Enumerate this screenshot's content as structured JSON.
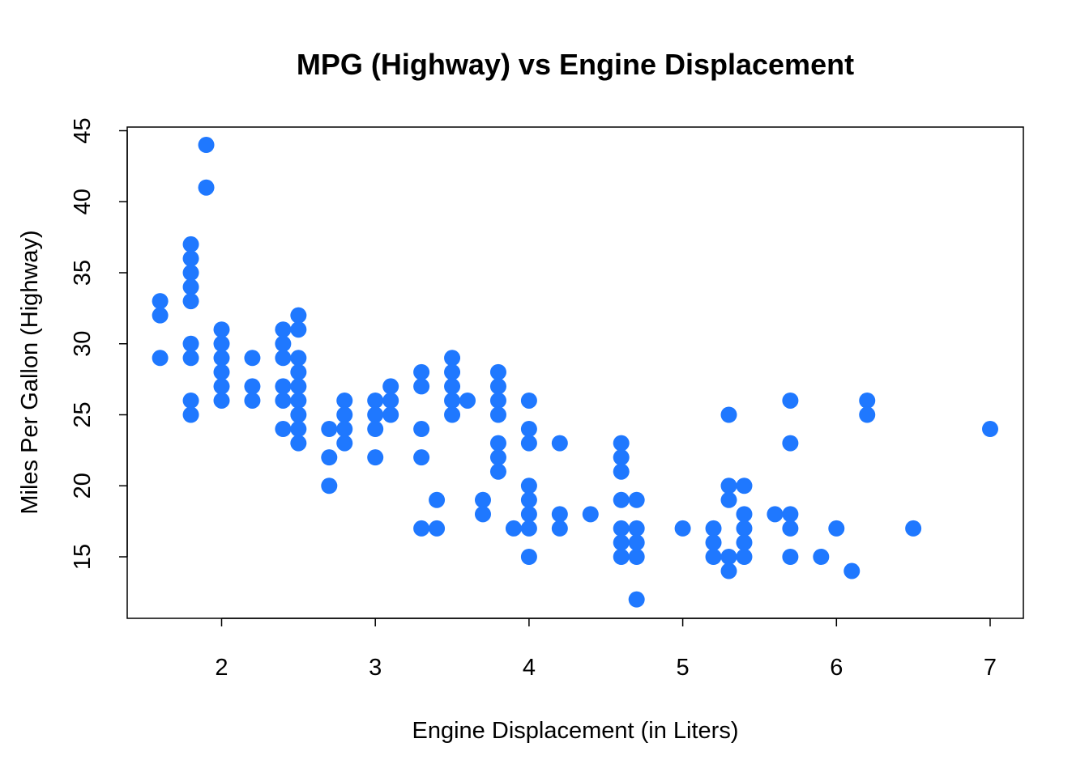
{
  "chart_data": {
    "type": "scatter",
    "title": "MPG (Highway) vs Engine Displacement",
    "xlabel": "Engine Displacement (in Liters)",
    "ylabel": "Miles Per Gallon (Highway)",
    "xlim": [
      1.6,
      7.0
    ],
    "ylim": [
      12,
      44
    ],
    "x_ticks": [
      2,
      3,
      4,
      5,
      6,
      7
    ],
    "y_ticks": [
      15,
      20,
      25,
      30,
      35,
      40,
      45
    ],
    "grid": false,
    "legend": "none",
    "point_color": "#1f78ff",
    "points": [
      {
        "x": 1.6,
        "y": 33
      },
      {
        "x": 1.6,
        "y": 32
      },
      {
        "x": 1.6,
        "y": 29
      },
      {
        "x": 1.8,
        "y": 37
      },
      {
        "x": 1.8,
        "y": 36
      },
      {
        "x": 1.8,
        "y": 35
      },
      {
        "x": 1.8,
        "y": 34
      },
      {
        "x": 1.8,
        "y": 33
      },
      {
        "x": 1.8,
        "y": 30
      },
      {
        "x": 1.8,
        "y": 29
      },
      {
        "x": 1.8,
        "y": 26
      },
      {
        "x": 1.8,
        "y": 25
      },
      {
        "x": 1.9,
        "y": 44
      },
      {
        "x": 1.9,
        "y": 41
      },
      {
        "x": 2.0,
        "y": 31
      },
      {
        "x": 2.0,
        "y": 30
      },
      {
        "x": 2.0,
        "y": 29
      },
      {
        "x": 2.0,
        "y": 28
      },
      {
        "x": 2.0,
        "y": 27
      },
      {
        "x": 2.0,
        "y": 26
      },
      {
        "x": 2.2,
        "y": 29
      },
      {
        "x": 2.2,
        "y": 27
      },
      {
        "x": 2.2,
        "y": 26
      },
      {
        "x": 2.4,
        "y": 31
      },
      {
        "x": 2.4,
        "y": 30
      },
      {
        "x": 2.4,
        "y": 29
      },
      {
        "x": 2.4,
        "y": 27
      },
      {
        "x": 2.4,
        "y": 26
      },
      {
        "x": 2.4,
        "y": 24
      },
      {
        "x": 2.5,
        "y": 32
      },
      {
        "x": 2.5,
        "y": 31
      },
      {
        "x": 2.5,
        "y": 29
      },
      {
        "x": 2.5,
        "y": 28
      },
      {
        "x": 2.5,
        "y": 27
      },
      {
        "x": 2.5,
        "y": 26
      },
      {
        "x": 2.5,
        "y": 25
      },
      {
        "x": 2.5,
        "y": 24
      },
      {
        "x": 2.5,
        "y": 23
      },
      {
        "x": 2.7,
        "y": 24
      },
      {
        "x": 2.7,
        "y": 22
      },
      {
        "x": 2.7,
        "y": 20
      },
      {
        "x": 2.8,
        "y": 26
      },
      {
        "x": 2.8,
        "y": 25
      },
      {
        "x": 2.8,
        "y": 24
      },
      {
        "x": 2.8,
        "y": 23
      },
      {
        "x": 3.0,
        "y": 26
      },
      {
        "x": 3.0,
        "y": 25
      },
      {
        "x": 3.0,
        "y": 24
      },
      {
        "x": 3.0,
        "y": 22
      },
      {
        "x": 3.1,
        "y": 27
      },
      {
        "x": 3.1,
        "y": 26
      },
      {
        "x": 3.1,
        "y": 25
      },
      {
        "x": 3.3,
        "y": 28
      },
      {
        "x": 3.3,
        "y": 27
      },
      {
        "x": 3.3,
        "y": 24
      },
      {
        "x": 3.3,
        "y": 22
      },
      {
        "x": 3.3,
        "y": 17
      },
      {
        "x": 3.4,
        "y": 19
      },
      {
        "x": 3.4,
        "y": 17
      },
      {
        "x": 3.5,
        "y": 29
      },
      {
        "x": 3.5,
        "y": 28
      },
      {
        "x": 3.5,
        "y": 27
      },
      {
        "x": 3.5,
        "y": 26
      },
      {
        "x": 3.5,
        "y": 25
      },
      {
        "x": 3.6,
        "y": 26
      },
      {
        "x": 3.7,
        "y": 19
      },
      {
        "x": 3.7,
        "y": 18
      },
      {
        "x": 3.8,
        "y": 28
      },
      {
        "x": 3.8,
        "y": 27
      },
      {
        "x": 3.8,
        "y": 26
      },
      {
        "x": 3.8,
        "y": 25
      },
      {
        "x": 3.8,
        "y": 23
      },
      {
        "x": 3.8,
        "y": 22
      },
      {
        "x": 3.8,
        "y": 21
      },
      {
        "x": 3.9,
        "y": 17
      },
      {
        "x": 4.0,
        "y": 26
      },
      {
        "x": 4.0,
        "y": 24
      },
      {
        "x": 4.0,
        "y": 23
      },
      {
        "x": 4.0,
        "y": 20
      },
      {
        "x": 4.0,
        "y": 19
      },
      {
        "x": 4.0,
        "y": 18
      },
      {
        "x": 4.0,
        "y": 17
      },
      {
        "x": 4.0,
        "y": 15
      },
      {
        "x": 4.2,
        "y": 23
      },
      {
        "x": 4.2,
        "y": 18
      },
      {
        "x": 4.2,
        "y": 17
      },
      {
        "x": 4.4,
        "y": 18
      },
      {
        "x": 4.6,
        "y": 23
      },
      {
        "x": 4.6,
        "y": 22
      },
      {
        "x": 4.6,
        "y": 21
      },
      {
        "x": 4.6,
        "y": 19
      },
      {
        "x": 4.6,
        "y": 17
      },
      {
        "x": 4.6,
        "y": 16
      },
      {
        "x": 4.6,
        "y": 15
      },
      {
        "x": 4.7,
        "y": 19
      },
      {
        "x": 4.7,
        "y": 17
      },
      {
        "x": 4.7,
        "y": 16
      },
      {
        "x": 4.7,
        "y": 15
      },
      {
        "x": 4.7,
        "y": 12
      },
      {
        "x": 5.0,
        "y": 17
      },
      {
        "x": 5.2,
        "y": 17
      },
      {
        "x": 5.2,
        "y": 16
      },
      {
        "x": 5.2,
        "y": 15
      },
      {
        "x": 5.3,
        "y": 25
      },
      {
        "x": 5.3,
        "y": 20
      },
      {
        "x": 5.3,
        "y": 19
      },
      {
        "x": 5.3,
        "y": 15
      },
      {
        "x": 5.3,
        "y": 14
      },
      {
        "x": 5.4,
        "y": 20
      },
      {
        "x": 5.4,
        "y": 18
      },
      {
        "x": 5.4,
        "y": 17
      },
      {
        "x": 5.4,
        "y": 16
      },
      {
        "x": 5.4,
        "y": 15
      },
      {
        "x": 5.6,
        "y": 18
      },
      {
        "x": 5.7,
        "y": 26
      },
      {
        "x": 5.7,
        "y": 23
      },
      {
        "x": 5.7,
        "y": 18
      },
      {
        "x": 5.7,
        "y": 17
      },
      {
        "x": 5.7,
        "y": 15
      },
      {
        "x": 5.9,
        "y": 15
      },
      {
        "x": 6.0,
        "y": 17
      },
      {
        "x": 6.1,
        "y": 14
      },
      {
        "x": 6.2,
        "y": 26
      },
      {
        "x": 6.2,
        "y": 25
      },
      {
        "x": 6.5,
        "y": 17
      },
      {
        "x": 7.0,
        "y": 24
      }
    ]
  }
}
